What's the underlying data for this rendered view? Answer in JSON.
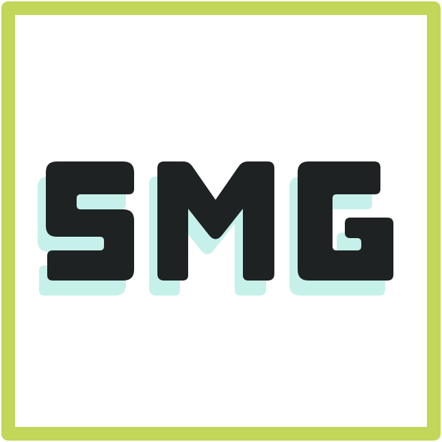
{
  "logo": {
    "text": "SMG",
    "colors": {
      "frame": "#c2d65a",
      "background": "#ffffff",
      "letters": "#1e2222",
      "shadow": "#c6f1ea"
    }
  }
}
